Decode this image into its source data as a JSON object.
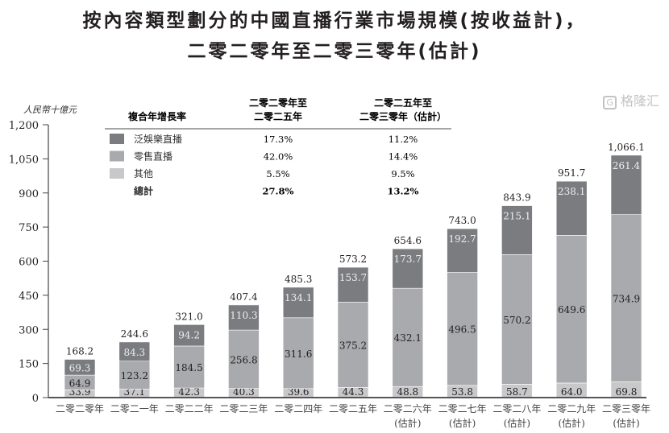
{
  "chart_data": {
    "type": "bar",
    "stacked": true,
    "title": "按內容類型劃分的中國直播行業市場規模(按收益計)，",
    "subtitle": "二零二零年至二零三零年(估計)",
    "ylabel": "人民幣十億元",
    "xlabel": "",
    "ylim": [
      0,
      1200
    ],
    "yticks": [
      "0",
      "150",
      "300",
      "450",
      "600",
      "750",
      "900",
      "1,050",
      "1,200"
    ],
    "yticks_values": [
      0,
      150,
      300,
      450,
      600,
      750,
      900,
      1050,
      1200
    ],
    "grid": false,
    "categories": [
      "二零二零年",
      "二零二一年",
      "二零二二年",
      "二零二三年",
      "二零二四年",
      "二零二五年",
      "二零二六年",
      "二零二七年",
      "二零二八年",
      "二零二九年",
      "二零三零年"
    ],
    "category_notes": [
      "",
      "",
      "",
      "",
      "",
      "",
      "(估計)",
      "(估計)",
      "(估計)",
      "(估計)",
      "(估計)"
    ],
    "series": [
      {
        "name": "其他",
        "color": "#c8c8ca",
        "values": [
          33.9,
          37.1,
          42.3,
          40.3,
          39.6,
          44.3,
          48.8,
          53.8,
          58.7,
          64.0,
          69.8
        ],
        "labels": [
          "33.9",
          "37.1",
          "42.3",
          "40.3",
          "39.6",
          "44.3",
          "48.8",
          "53.8",
          "58.7",
          "64.0",
          "69.8"
        ]
      },
      {
        "name": "零售直播",
        "color": "#a9aaad",
        "values": [
          64.9,
          123.2,
          184.5,
          256.8,
          311.6,
          375.2,
          432.1,
          496.5,
          570.2,
          649.6,
          734.9
        ],
        "labels": [
          "64.9",
          "123.2",
          "184.5",
          "256.8",
          "311.6",
          "375.2",
          "432.1",
          "496.5",
          "570.2",
          "649.6",
          "734.9"
        ]
      },
      {
        "name": "泛娛樂直播",
        "color": "#7b7c80",
        "values": [
          69.3,
          84.3,
          94.2,
          110.3,
          134.1,
          153.7,
          173.7,
          192.7,
          215.1,
          238.1,
          261.4
        ],
        "labels": [
          "69.3",
          "84.3",
          "94.2",
          "110.3",
          "134.1",
          "153.7",
          "173.7",
          "192.7",
          "215.1",
          "238.1",
          "261.4"
        ]
      }
    ],
    "totals": [
      "168.2",
      "244.6",
      "321.0",
      "407.4",
      "485.3",
      "573.2",
      "654.6",
      "743.0",
      "843.9",
      "951.7",
      "1,066.1"
    ],
    "totals_values": [
      168.2,
      244.6,
      321.0,
      407.4,
      485.3,
      573.2,
      654.6,
      743.0,
      843.9,
      951.7,
      1066.1
    ],
    "legend": "top-center",
    "cagr_table": {
      "header": "複合年增長率",
      "col1": [
        "二零二零年至",
        "二零二五年"
      ],
      "col2": [
        "二零二五年至",
        "二零三零年（估計）"
      ],
      "rows": [
        {
          "label": "泛娛樂直播",
          "color": "#7b7c80",
          "v1": "17.3%",
          "v2": "11.2%"
        },
        {
          "label": "零售直播",
          "color": "#a9aaad",
          "v1": "42.0%",
          "v2": "14.4%"
        },
        {
          "label": "其他",
          "color": "#c8c8ca",
          "v1": "5.5%",
          "v2": "9.5%"
        },
        {
          "label": "總計",
          "color": "",
          "v1": "27.8%",
          "v2": "13.2%",
          "bold": true
        }
      ]
    }
  },
  "watermark": "格隆汇"
}
